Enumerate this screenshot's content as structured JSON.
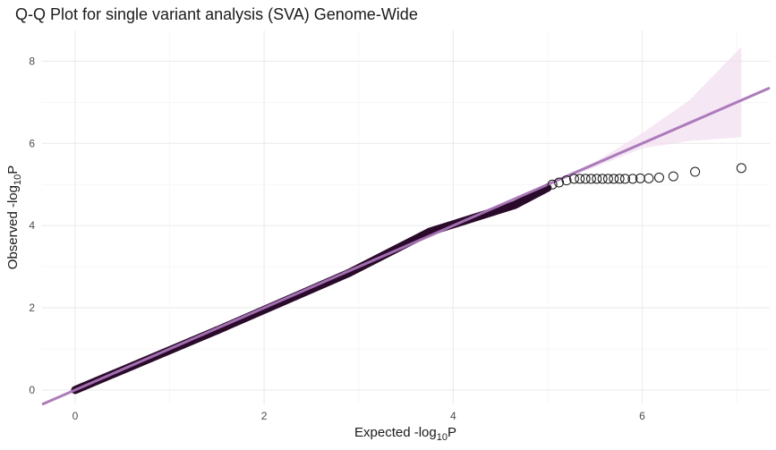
{
  "colors": {
    "fit_line": "#a875b6",
    "confidence_band": "#f3dff1",
    "point_stroke": "#1a1a1a",
    "dense_points": "#2a0a2a"
  },
  "chart_data": {
    "type": "scatter",
    "title": "Q-Q Plot for single variant analysis (SVA) Genome-Wide",
    "xlabel": {
      "main": "Expected -log",
      "sub": "10",
      "suffix": "P"
    },
    "ylabel": {
      "main": "Observed -log",
      "sub": "10",
      "suffix": "P"
    },
    "xlim": [
      -0.35,
      7.35
    ],
    "ylim": [
      -0.35,
      8.75
    ],
    "x_ticks": [
      0,
      2,
      4,
      6
    ],
    "y_ticks": [
      0,
      2,
      4,
      6,
      8
    ],
    "grid": true,
    "legend": "none",
    "fit_line": {
      "intercept": 0.0,
      "slope": 1.0
    },
    "confidence_band": {
      "upper": [
        [
          5.0,
          5.0
        ],
        [
          5.5,
          5.55
        ],
        [
          6.0,
          6.25
        ],
        [
          6.5,
          7.05
        ],
        [
          7.05,
          8.35
        ]
      ],
      "lower": [
        [
          5.0,
          5.0
        ],
        [
          5.5,
          5.42
        ],
        [
          6.0,
          5.88
        ],
        [
          6.5,
          6.06
        ],
        [
          7.05,
          6.15
        ]
      ]
    },
    "dense_segments": [
      {
        "x": [
          0.0,
          1.5
        ],
        "y": [
          0.0,
          1.45
        ]
      },
      {
        "x": [
          1.5,
          2.9
        ],
        "y": [
          1.45,
          2.85
        ]
      },
      {
        "x": [
          2.9,
          3.75
        ],
        "y": [
          2.85,
          3.85
        ]
      },
      {
        "x": [
          3.75,
          4.65
        ],
        "y": [
          3.85,
          4.5
        ]
      },
      {
        "x": [
          4.65,
          5.0
        ],
        "y": [
          4.5,
          4.92
        ]
      }
    ],
    "points": [
      {
        "x": 5.05,
        "y": 5.0
      },
      {
        "x": 5.12,
        "y": 5.05
      },
      {
        "x": 5.2,
        "y": 5.1
      },
      {
        "x": 5.28,
        "y": 5.14
      },
      {
        "x": 5.34,
        "y": 5.14
      },
      {
        "x": 5.4,
        "y": 5.14
      },
      {
        "x": 5.46,
        "y": 5.14
      },
      {
        "x": 5.52,
        "y": 5.14
      },
      {
        "x": 5.58,
        "y": 5.14
      },
      {
        "x": 5.64,
        "y": 5.14
      },
      {
        "x": 5.7,
        "y": 5.14
      },
      {
        "x": 5.76,
        "y": 5.14
      },
      {
        "x": 5.82,
        "y": 5.14
      },
      {
        "x": 5.9,
        "y": 5.14
      },
      {
        "x": 5.98,
        "y": 5.15
      },
      {
        "x": 6.07,
        "y": 5.15
      },
      {
        "x": 6.18,
        "y": 5.17
      },
      {
        "x": 6.33,
        "y": 5.2
      },
      {
        "x": 6.56,
        "y": 5.31
      },
      {
        "x": 7.05,
        "y": 5.4
      }
    ]
  }
}
